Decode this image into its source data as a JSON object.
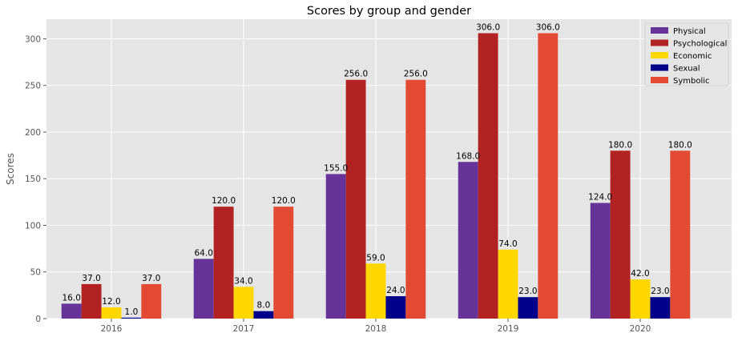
{
  "chart_data": {
    "type": "bar",
    "title": "Scores by group and gender",
    "xlabel": "",
    "ylabel": "Scores",
    "categories": [
      "2016",
      "2017",
      "2018",
      "2019",
      "2020"
    ],
    "ylim": [
      0,
      321
    ],
    "yticks": [
      0,
      50,
      100,
      150,
      200,
      250,
      300
    ],
    "grid": true,
    "legend_position": "top-right",
    "series": [
      {
        "name": "Physical",
        "color": "#663399",
        "values": [
          16.0,
          64.0,
          155.0,
          168.0,
          124.0
        ]
      },
      {
        "name": "Psychological",
        "color": "#b22222",
        "values": [
          37.0,
          120.0,
          256.0,
          306.0,
          180.0
        ]
      },
      {
        "name": "Economic",
        "color": "#ffd700",
        "values": [
          12.0,
          34.0,
          59.0,
          74.0,
          42.0
        ]
      },
      {
        "name": "Sexual",
        "color": "#00008b",
        "values": [
          1.0,
          8.0,
          24.0,
          23.0,
          23.0
        ]
      },
      {
        "name": "Symbolic",
        "color": "#e24a33",
        "values": [
          37.0,
          120.0,
          256.0,
          306.0,
          180.0
        ]
      }
    ]
  }
}
